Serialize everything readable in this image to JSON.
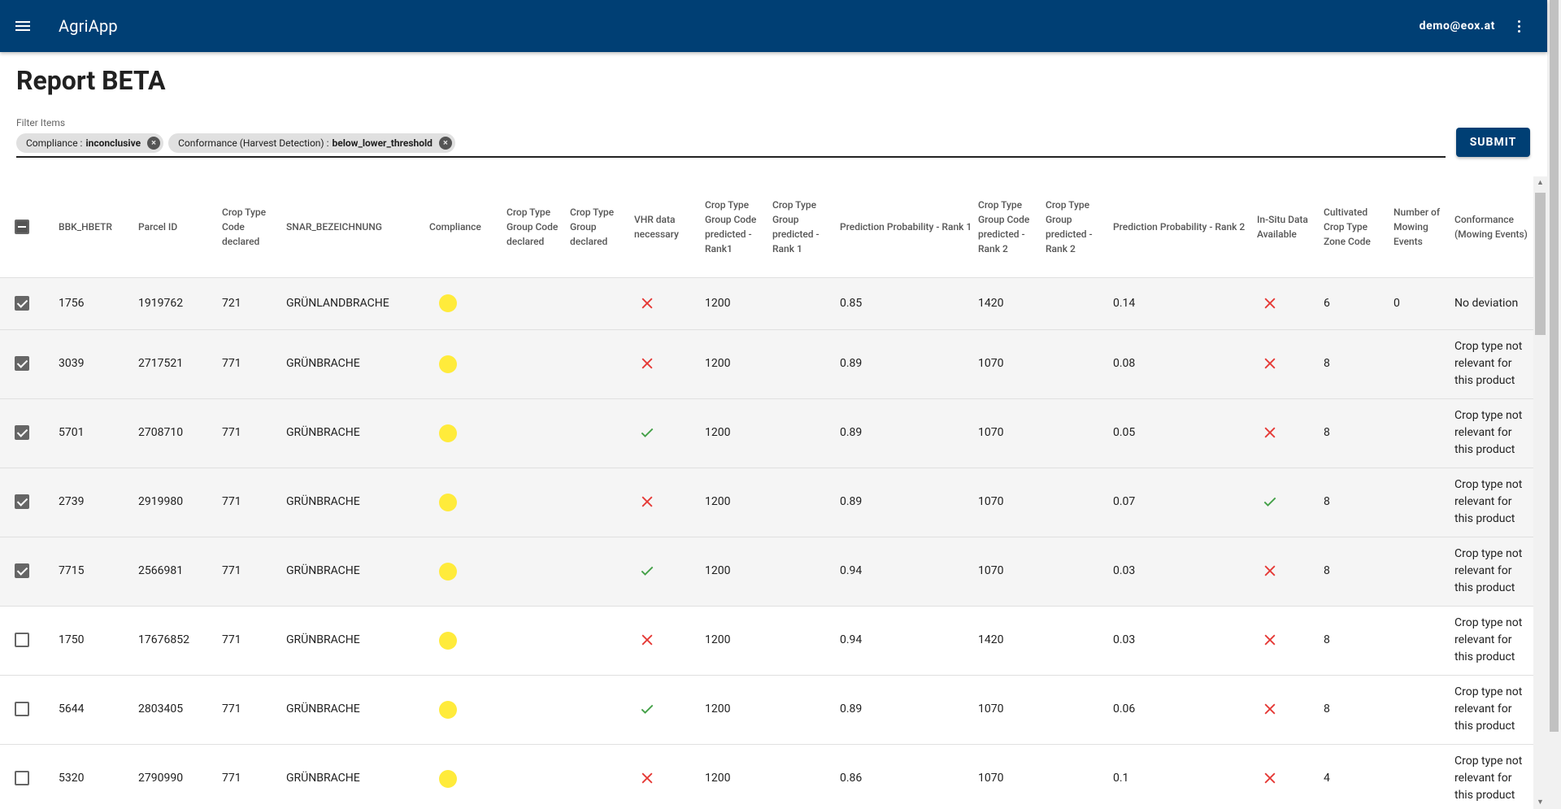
{
  "app": {
    "title": "AgriApp",
    "user": "demo@eox.at",
    "menu_icon": "hamburger-menu-icon",
    "more_icon": "more-vert-icon"
  },
  "page": {
    "title": "Report BETA"
  },
  "filter": {
    "label": "Filter Items",
    "chips": [
      {
        "key": "Compliance :",
        "value": "inconclusive"
      },
      {
        "key": "Conformance (Harvest Detection) :",
        "value": "below_lower_threshold"
      }
    ],
    "submit_label": "SUBMIT"
  },
  "table": {
    "columns": [
      "",
      "BBK_HBETR",
      "Parcel ID",
      "Crop Type Code declared",
      "SNAR_BEZEICHNUNG",
      "Compliance",
      "Crop Type Group Code declared",
      "Crop Type Group declared",
      "VHR data necessary",
      "Crop Type Group Code predicted - Rank1",
      "Crop Type Group predicted - Rank 1",
      "Prediction Probability - Rank 1",
      "Crop Type Group Code predicted - Rank 2",
      "Crop Type Group predicted - Rank 2",
      "Prediction Probability - Rank 2",
      "In-Situ Data Available",
      "Cultivated Crop Type Zone Code",
      "Number of Mowing Events",
      "Conformance (Mowing Events)"
    ],
    "compliance_color": "#ffeb3b",
    "rows": [
      {
        "selected": true,
        "bbk": "1756",
        "parcel": "1919762",
        "ctc": "721",
        "snar": "GRÜNLANDBRACHE",
        "vhr": false,
        "r1code": "1200",
        "p1": "0.85",
        "r2code": "1420",
        "p2": "0.14",
        "insitu": false,
        "zone": "6",
        "mowing": "0",
        "conf": "No deviation"
      },
      {
        "selected": true,
        "bbk": "3039",
        "parcel": "2717521",
        "ctc": "771",
        "snar": "GRÜNBRACHE",
        "vhr": false,
        "r1code": "1200",
        "p1": "0.89",
        "r2code": "1070",
        "p2": "0.08",
        "insitu": false,
        "zone": "8",
        "mowing": "",
        "conf": "Crop type not relevant for this product"
      },
      {
        "selected": true,
        "bbk": "5701",
        "parcel": "2708710",
        "ctc": "771",
        "snar": "GRÜNBRACHE",
        "vhr": true,
        "r1code": "1200",
        "p1": "0.89",
        "r2code": "1070",
        "p2": "0.05",
        "insitu": false,
        "zone": "8",
        "mowing": "",
        "conf": "Crop type not relevant for this product"
      },
      {
        "selected": true,
        "bbk": "2739",
        "parcel": "2919980",
        "ctc": "771",
        "snar": "GRÜNBRACHE",
        "vhr": false,
        "r1code": "1200",
        "p1": "0.89",
        "r2code": "1070",
        "p2": "0.07",
        "insitu": true,
        "zone": "8",
        "mowing": "",
        "conf": "Crop type not relevant for this product"
      },
      {
        "selected": true,
        "bbk": "7715",
        "parcel": "2566981",
        "ctc": "771",
        "snar": "GRÜNBRACHE",
        "vhr": true,
        "r1code": "1200",
        "p1": "0.94",
        "r2code": "1070",
        "p2": "0.03",
        "insitu": false,
        "zone": "8",
        "mowing": "",
        "conf": "Crop type not relevant for this product"
      },
      {
        "selected": false,
        "bbk": "1750",
        "parcel": "17676852",
        "ctc": "771",
        "snar": "GRÜNBRACHE",
        "vhr": false,
        "r1code": "1200",
        "p1": "0.94",
        "r2code": "1420",
        "p2": "0.03",
        "insitu": false,
        "zone": "8",
        "mowing": "",
        "conf": "Crop type not relevant for this product"
      },
      {
        "selected": false,
        "bbk": "5644",
        "parcel": "2803405",
        "ctc": "771",
        "snar": "GRÜNBRACHE",
        "vhr": true,
        "r1code": "1200",
        "p1": "0.89",
        "r2code": "1070",
        "p2": "0.06",
        "insitu": false,
        "zone": "8",
        "mowing": "",
        "conf": "Crop type not relevant for this product"
      },
      {
        "selected": false,
        "bbk": "5320",
        "parcel": "2790990",
        "ctc": "771",
        "snar": "GRÜNBRACHE",
        "vhr": false,
        "r1code": "1200",
        "p1": "0.86",
        "r2code": "1070",
        "p2": "0.1",
        "insitu": false,
        "zone": "4",
        "mowing": "",
        "conf": "Crop type not relevant for this product"
      }
    ]
  },
  "colors": {
    "brand": "#003f74",
    "check": "#43a047",
    "cross": "#e53935"
  }
}
